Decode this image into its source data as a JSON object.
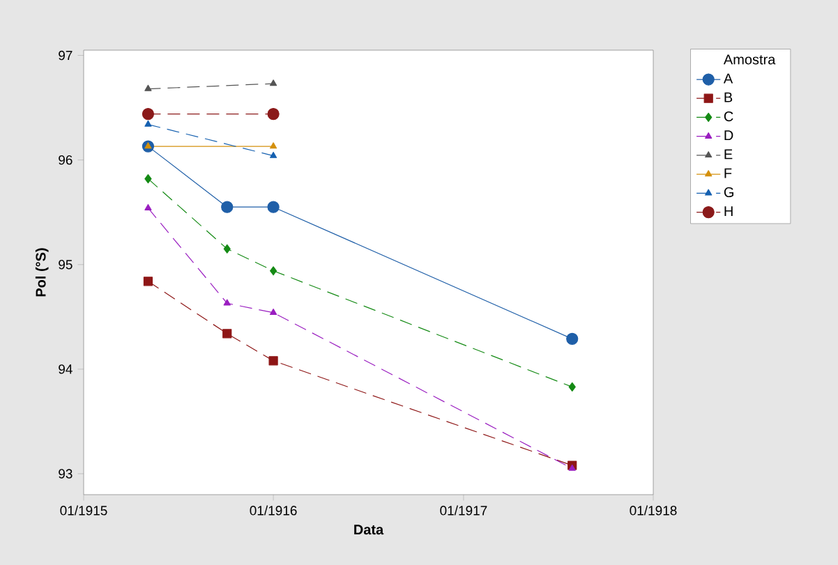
{
  "chart_data": {
    "type": "line",
    "xlabel": "Data",
    "ylabel": "Pol (°S)",
    "legend_title": "Amostra",
    "legend": "right",
    "grid": false,
    "x": [
      "1915-05-05",
      "1915-10-04",
      "1916-01-01",
      "1917-07-29"
    ],
    "xlim": [
      "1915-01-01",
      "1918-01-01"
    ],
    "xticks": [
      {
        "value": "1915-01-01",
        "label": "01/1915"
      },
      {
        "value": "1916-01-01",
        "label": "01/1916"
      },
      {
        "value": "1917-01-01",
        "label": "01/1917"
      },
      {
        "value": "1918-01-01",
        "label": "01/1918"
      }
    ],
    "ylim": [
      92.8,
      97.05
    ],
    "yticks": [
      93,
      94,
      95,
      96,
      97
    ],
    "series": [
      {
        "name": "A",
        "color": "#1f5fa8",
        "marker": "circle",
        "line_style": "solid",
        "values": [
          96.13,
          95.55,
          95.55,
          94.29
        ]
      },
      {
        "name": "B",
        "color": "#8e1616",
        "marker": "square",
        "line_style": "dashed",
        "values": [
          94.84,
          94.34,
          94.08,
          93.08
        ]
      },
      {
        "name": "C",
        "color": "#148a14",
        "marker": "diamond",
        "line_style": "dashed",
        "values": [
          95.82,
          95.15,
          94.94,
          93.83
        ]
      },
      {
        "name": "D",
        "color": "#9a1ec0",
        "marker": "triangle",
        "line_style": "dashed",
        "values": [
          95.54,
          94.63,
          94.54,
          93.05
        ]
      },
      {
        "name": "E",
        "color": "#555555",
        "marker": "triangle",
        "line_style": "dashed",
        "x": [
          "1915-05-05",
          "1916-01-01"
        ],
        "values": [
          96.68,
          96.73
        ]
      },
      {
        "name": "F",
        "color": "#d4900c",
        "marker": "triangle",
        "line_style": "solid",
        "x": [
          "1915-05-05",
          "1916-01-01"
        ],
        "values": [
          96.13,
          96.13
        ]
      },
      {
        "name": "G",
        "color": "#1560b0",
        "marker": "triangle",
        "line_style": "dashed",
        "x": [
          "1915-05-05",
          "1916-01-01"
        ],
        "values": [
          96.34,
          96.04
        ]
      },
      {
        "name": "H",
        "color": "#8b1a1a",
        "marker": "circle",
        "line_style": "dashed",
        "x": [
          "1915-05-05",
          "1916-01-01"
        ],
        "values": [
          96.44,
          96.44
        ]
      }
    ]
  }
}
